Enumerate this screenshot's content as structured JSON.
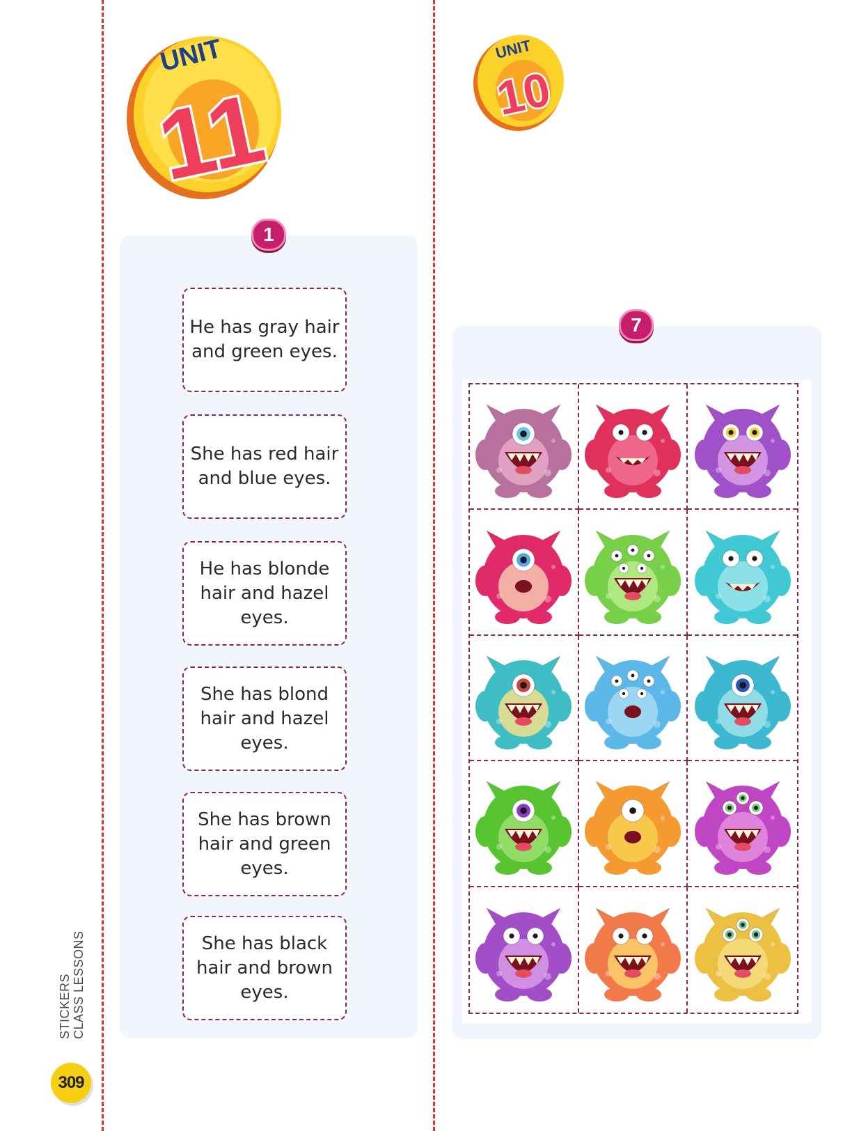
{
  "sidebar": {
    "line1": "STICKERS",
    "line2": "CLASS LESSONS",
    "page_number": "309"
  },
  "left": {
    "coin": {
      "label": "UNIT",
      "number": "11"
    },
    "activity_number": "1",
    "cards": [
      "He has gray hair and green eyes.",
      "She has red hair and blue eyes.",
      "He has blonde hair and hazel eyes.",
      "She has blond hair and hazel eyes.",
      "She has brown hair and green eyes.",
      "She has black hair and brown eyes."
    ]
  },
  "right": {
    "coin": {
      "label": "UNIT",
      "number": "10"
    },
    "activity_number": "7",
    "stickers": [
      {
        "kind": "monster-sticker",
        "body": "#b8709c",
        "belly": "#e6a8c9",
        "eyes": 1,
        "iris": "#6ec3e8",
        "mouth": "wide"
      },
      {
        "kind": "monster-sticker",
        "body": "#e0305c",
        "belly": "#f07090",
        "eyes": 2,
        "iris": "#ffffff",
        "mouth": "grin"
      },
      {
        "kind": "monster-sticker",
        "body": "#a050c8",
        "belly": "#d8a0e8",
        "eyes": 2,
        "iris": "#f6d24a",
        "mouth": "wide"
      },
      {
        "kind": "monster-sticker",
        "body": "#e02a6a",
        "belly": "#f6c7b0",
        "eyes": 1,
        "iris": "#5aa6e0",
        "mouth": "small"
      },
      {
        "kind": "monster-sticker",
        "body": "#78d048",
        "belly": "#b8ec8c",
        "eyes": 5,
        "iris": "#ffffff",
        "mouth": "wide"
      },
      {
        "kind": "monster-sticker",
        "body": "#40c8d4",
        "belly": "#9ae4ea",
        "eyes": 2,
        "iris": "#ffffff",
        "mouth": "grin"
      },
      {
        "kind": "monster-sticker",
        "body": "#3ebec4",
        "belly": "#f3e08c",
        "eyes": 1,
        "iris": "#c9463c",
        "mouth": "wide"
      },
      {
        "kind": "monster-sticker",
        "body": "#5cb8e8",
        "belly": "#a6dcf4",
        "eyes": 5,
        "iris": "#ffffff",
        "mouth": "small"
      },
      {
        "kind": "monster-sticker",
        "body": "#3cb8d0",
        "belly": "#9ee0ea",
        "eyes": 1,
        "iris": "#2a56b8",
        "mouth": "wide"
      },
      {
        "kind": "monster-sticker",
        "body": "#58c430",
        "belly": "#9ae070",
        "eyes": 1,
        "iris": "#8a3cc8",
        "mouth": "wide"
      },
      {
        "kind": "monster-sticker",
        "body": "#f49a30",
        "belly": "#f8d050",
        "eyes": 1,
        "iris": "#ffffff",
        "mouth": "small"
      },
      {
        "kind": "monster-sticker",
        "body": "#c046c4",
        "belly": "#e48ee0",
        "eyes": 3,
        "iris": "#7ad078",
        "mouth": "wide"
      },
      {
        "kind": "monster-sticker",
        "body": "#a14ec8",
        "belly": "#d79ce8",
        "eyes": 2,
        "iris": "#ffffff",
        "mouth": "wide"
      },
      {
        "kind": "monster-sticker",
        "body": "#f27a4a",
        "belly": "#fbd06a",
        "eyes": 2,
        "iris": "#ffffff",
        "mouth": "wide"
      },
      {
        "kind": "monster-sticker",
        "body": "#ecc040",
        "belly": "#f6de80",
        "eyes": 3,
        "iris": "#6cc090",
        "mouth": "wide"
      }
    ]
  }
}
